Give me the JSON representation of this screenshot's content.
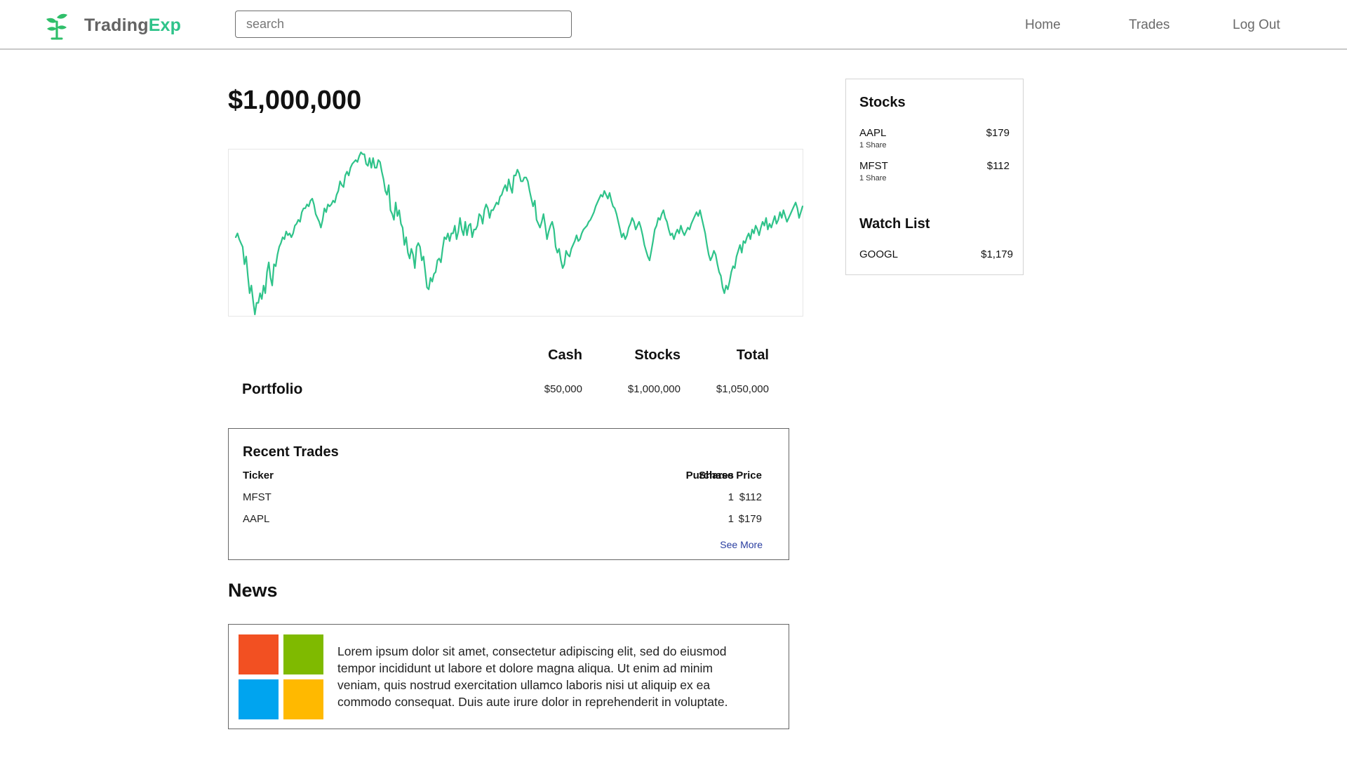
{
  "brand": {
    "name_part1": "Trading",
    "name_part2": "Exp",
    "accent_color": "#2fc38a",
    "logo_icon": "sprout-icon"
  },
  "search": {
    "placeholder": "search",
    "value": ""
  },
  "nav": [
    {
      "label": "Home"
    },
    {
      "label": "Trades"
    },
    {
      "label": "Log Out"
    }
  ],
  "balance": "$1,000,000",
  "chart_data": {
    "type": "line",
    "title": "",
    "xlabel": "",
    "ylabel": "",
    "grid": false,
    "color": "#2fc38a",
    "series": [
      {
        "values": [
          56,
          58,
          55,
          53,
          51,
          42,
          46,
          36,
          27,
          31,
          23,
          16,
          22,
          22,
          27,
          24,
          31,
          27,
          38,
          43,
          35,
          31,
          42,
          41,
          47,
          51,
          53,
          56,
          55,
          59,
          57,
          58,
          56,
          58,
          62,
          63,
          65,
          64,
          69,
          71,
          71,
          73,
          72,
          75,
          76,
          73,
          68,
          66,
          64,
          61,
          65,
          71,
          69,
          73,
          72,
          73,
          75,
          74,
          78,
          80,
          85,
          83,
          82,
          88,
          90,
          88,
          92,
          94,
          95,
          96,
          95,
          98,
          100,
          99,
          99,
          94,
          93,
          97,
          92,
          97,
          92,
          92,
          96,
          95,
          90,
          86,
          80,
          78,
          83,
          70,
          68,
          65,
          74,
          67,
          70,
          63,
          61,
          52,
          56,
          48,
          45,
          50,
          47,
          40,
          51,
          53,
          51,
          44,
          46,
          38,
          30,
          29,
          35,
          33,
          37,
          38,
          44,
          45,
          43,
          50,
          56,
          55,
          58,
          54,
          58,
          58,
          62,
          55,
          59,
          66,
          60,
          57,
          64,
          57,
          62,
          63,
          56,
          60,
          60,
          62,
          68,
          67,
          63,
          70,
          73,
          71,
          66,
          70,
          70,
          72,
          74,
          73,
          77,
          78,
          81,
          83,
          80,
          86,
          82,
          79,
          88,
          88,
          91,
          89,
          85,
          85,
          87,
          87,
          85,
          80,
          76,
          72,
          75,
          65,
          63,
          61,
          64,
          68,
          62,
          55,
          59,
          62,
          64,
          60,
          51,
          48,
          50,
          44,
          40,
          42,
          49,
          47,
          46,
          50,
          52,
          54,
          57,
          54,
          55,
          58,
          60,
          61,
          62,
          64,
          65,
          67,
          69,
          72,
          74,
          76,
          78,
          77,
          80,
          78,
          76,
          79,
          75,
          72,
          71,
          68,
          64,
          60,
          56,
          58,
          55,
          57,
          61,
          63,
          66,
          64,
          60,
          62,
          64,
          61,
          57,
          52,
          49,
          46,
          44,
          49,
          54,
          60,
          62,
          66,
          65,
          68,
          70,
          66,
          64,
          60,
          57,
          58,
          55,
          58,
          60,
          58,
          62,
          59,
          57,
          59,
          61,
          60,
          63,
          65,
          67,
          69,
          67,
          70,
          66,
          62,
          58,
          52,
          47,
          44,
          46,
          49,
          47,
          42,
          38,
          36,
          30,
          27,
          31,
          29,
          33,
          38,
          41,
          40,
          46,
          49,
          52,
          48,
          54,
          53,
          56,
          58,
          55,
          60,
          58,
          62,
          60,
          57,
          61,
          64,
          62,
          66,
          60,
          63,
          61,
          64,
          67,
          63,
          65,
          69,
          66,
          70,
          67,
          64,
          66,
          68,
          70,
          72,
          74,
          71,
          66,
          69,
          72
        ]
      }
    ]
  },
  "summary": {
    "title": "Portfolio",
    "headers": {
      "cash": "Cash",
      "stocks": "Stocks",
      "total": "Total"
    },
    "values": {
      "cash": "$50,000",
      "stocks": "$1,000,000",
      "total": "$1,050,000"
    }
  },
  "recent_trades": {
    "title": "Recent Trades",
    "headers": {
      "ticker": "Ticker",
      "shares": "Shares",
      "price": "Purchase Price"
    },
    "rows": [
      {
        "ticker": "MFST",
        "shares": "1",
        "price": "$112"
      },
      {
        "ticker": "AAPL",
        "shares": "1",
        "price": "$179"
      }
    ],
    "see_more": "See More",
    "link_color": "#2a3ea0"
  },
  "news": {
    "title": "News",
    "items": [
      {
        "logo_icon": "windows-logo-icon",
        "logo_colors": [
          "#f25022",
          "#7fba00",
          "#00a4ef",
          "#ffb900"
        ],
        "text": "Lorem ipsum dolor sit amet, consectetur adipiscing elit, sed do eiusmod tempor incididunt ut labore et dolore magna aliqua. Ut enim ad minim veniam, quis nostrud exercitation ullamco laboris nisi ut aliquip ex ea commodo consequat. Duis aute irure dolor in reprehenderit in voluptate."
      }
    ]
  },
  "sidebar": {
    "stocks_title": "Stocks",
    "stocks": [
      {
        "ticker": "AAPL",
        "shares": "1 Share",
        "price": "$179"
      },
      {
        "ticker": "MFST",
        "shares": "1 Share",
        "price": "$112"
      }
    ],
    "watchlist_title": "Watch List",
    "watchlist": [
      {
        "ticker": "GOOGL",
        "price": "$1,179"
      }
    ]
  }
}
